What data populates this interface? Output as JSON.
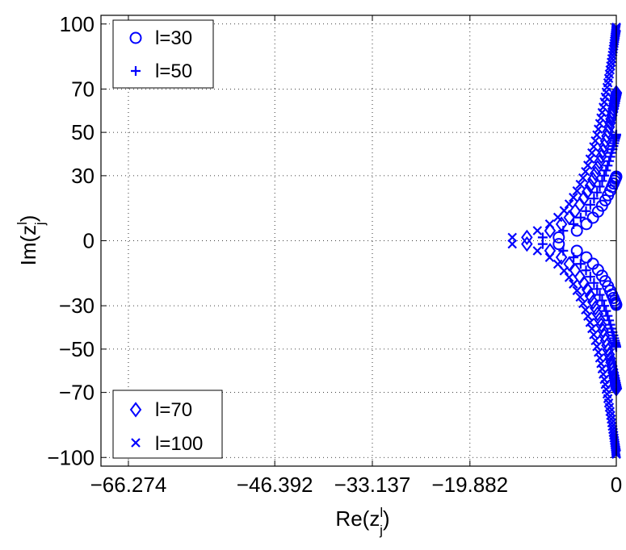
{
  "chart_data": {
    "type": "scatter",
    "title": "",
    "xlabel": "Re(z",
    "xlabel_sup": "l",
    "xlabel_sub": "j",
    "xlabel_close": ")",
    "ylabel": "Im(z",
    "ylabel_sup": "l",
    "ylabel_sub": "j",
    "ylabel_close": ")",
    "xlim": [
      -70,
      0
    ],
    "ylim": [
      -104,
      104
    ],
    "grid": true,
    "marker_color": "#0000ff",
    "xticks": [
      -66.274,
      -46.392,
      -33.137,
      -19.882,
      0
    ],
    "xtick_labels": [
      "−66.274",
      "−46.392",
      "−33.137",
      "−19.882",
      "0"
    ],
    "yticks": [
      -100,
      -70,
      -50,
      -30,
      0,
      30,
      50,
      70,
      100
    ],
    "ytick_labels": [
      "−100",
      "−70",
      "−50",
      "−30",
      "0",
      "30",
      "50",
      "70",
      "100"
    ],
    "legends": [
      {
        "placement": "top-left",
        "entries": [
          {
            "label": "l=30",
            "series": 0
          },
          {
            "label": "l=50",
            "series": 1
          }
        ]
      },
      {
        "placement": "bottom-left",
        "entries": [
          {
            "label": "l=70",
            "series": 2
          },
          {
            "label": "l=100",
            "series": 3
          }
        ]
      }
    ],
    "series": [
      {
        "name": "l=30",
        "marker": "circle",
        "vertex_re": -19.882,
        "end_re": -2.2,
        "end_im": 29.6,
        "count": 30
      },
      {
        "name": "l=50",
        "marker": "plus",
        "vertex_re": -33.137,
        "end_re": -2.3,
        "end_im": 49.0,
        "count": 50
      },
      {
        "name": "l=70",
        "marker": "diamond",
        "vertex_re": -46.392,
        "end_re": -2.5,
        "end_im": 68.3,
        "count": 70
      },
      {
        "name": "l=100",
        "marker": "x",
        "vertex_re": -66.274,
        "end_re": -2.6,
        "end_im": 98.5,
        "count": 100
      }
    ]
  }
}
